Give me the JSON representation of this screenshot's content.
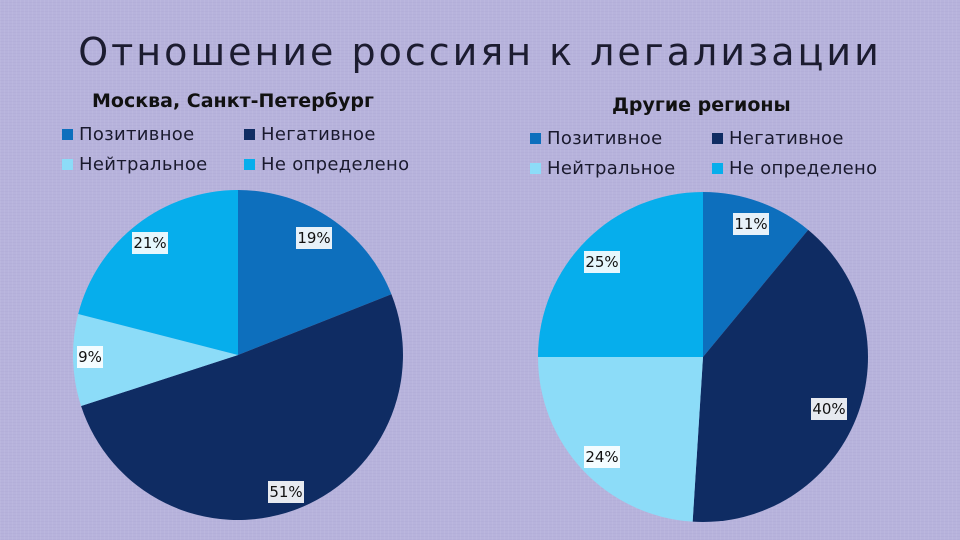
{
  "title": "Отношение россиян к легализации",
  "colors": {
    "positive": "#0d6fbd",
    "negative": "#0f2c63",
    "neutral": "#8cdcf8",
    "undefined": "#06aeec"
  },
  "chart_data": [
    {
      "type": "pie",
      "title": "Москва, Санкт-Петербург",
      "legend": [
        "Позитивное",
        "Негативное",
        "Нейтральное",
        "Не определено"
      ],
      "legend_position": "top",
      "slices": [
        {
          "name": "Позитивное",
          "value": 19,
          "label": "19%",
          "color_key": "positive"
        },
        {
          "name": "Негативное",
          "value": 51,
          "label": "51%",
          "color_key": "negative"
        },
        {
          "name": "Нейтральное",
          "value": 9,
          "label": "9%",
          "color_key": "neutral"
        },
        {
          "name": "Не определено",
          "value": 21,
          "label": "21%",
          "color_key": "undefined"
        }
      ]
    },
    {
      "type": "pie",
      "title": "Другие регионы",
      "legend": [
        "Позитивное",
        "Негативное",
        "Нейтральное",
        "Не определено"
      ],
      "legend_position": "top",
      "slices": [
        {
          "name": "Позитивное",
          "value": 11,
          "label": "11%",
          "color_key": "positive"
        },
        {
          "name": "Негативное",
          "value": 40,
          "label": "40%",
          "color_key": "negative"
        },
        {
          "name": "Нейтральное",
          "value": 24,
          "label": "24%",
          "color_key": "neutral"
        },
        {
          "name": "Не определено",
          "value": 25,
          "label": "25%",
          "color_key": "undefined"
        }
      ]
    }
  ]
}
